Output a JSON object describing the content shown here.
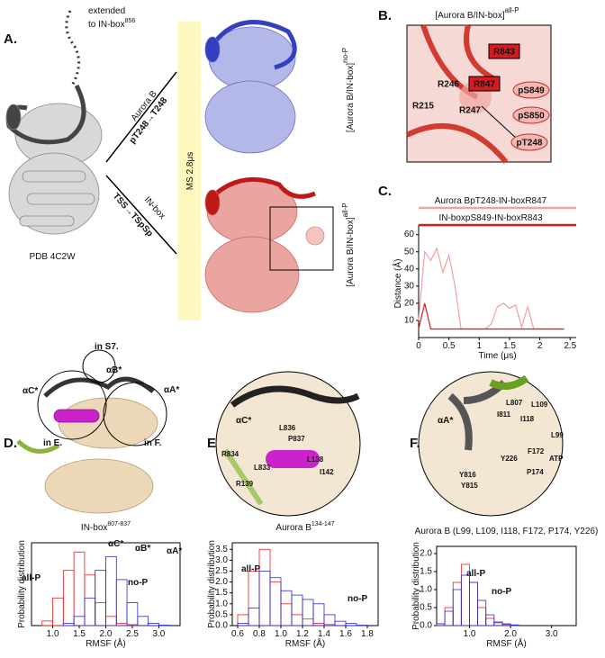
{
  "figure": {
    "panels": [
      "A.",
      "B.",
      "C.",
      "D.",
      "E.",
      "F."
    ],
    "a": {
      "extended": "extended",
      "to_inbox": "to IN-box",
      "to_inbox_sup": "856",
      "aurora_b": "Aurora B",
      "mut1": "pT248→T248",
      "inbox": "IN-box",
      "mut2": "TSS→TSpSp",
      "ms": "MS 2.8μs",
      "nop_main": "[Aurora B/IN-box]",
      "nop_sup": "no-P",
      "allp_main": "[Aurora B/IN-box]",
      "allp_sup": "all-P",
      "pdb": "PDB 4C2W"
    },
    "b": {
      "title": "[Aurora B/IN-box]",
      "title_sup": "all-P",
      "residues": [
        "R843",
        "pS849",
        "R246",
        "R847",
        "R215",
        "R247",
        "pS850",
        "pT248"
      ]
    },
    "d": {
      "labels": [
        "αC*",
        "αB*",
        "αA*",
        "in S7.",
        "in E.",
        "in F."
      ]
    },
    "e": {
      "labels": [
        "αC*",
        "L836",
        "P837",
        "R834",
        "L833",
        "L138",
        "I142",
        "R139"
      ]
    },
    "f": {
      "labels": [
        "αA*",
        "L807",
        "L109",
        "I118",
        "L99",
        "F172",
        "ATP",
        "I811",
        "Y226",
        "P174",
        "Y816",
        "Y815"
      ]
    }
  },
  "chart_data": [
    {
      "type": "line",
      "xlabel": "Time (μs)",
      "ylabel": "Distance (Å)",
      "x": [
        0,
        0.1,
        0.2,
        0.3,
        0.4,
        0.5,
        0.6,
        0.7,
        0.8,
        0.9,
        1.0,
        1.1,
        1.2,
        1.3,
        1.4,
        1.5,
        1.6,
        1.7,
        1.8,
        1.9,
        2.0,
        2.1,
        2.2,
        2.3,
        2.4
      ],
      "series": [
        {
          "name": "Aurora BpT248-IN-boxR847",
          "color": "#f4a0a0",
          "values": [
            10,
            50,
            45,
            52,
            38,
            48,
            30,
            5,
            5,
            5,
            5,
            5,
            8,
            18,
            20,
            17,
            19,
            6,
            18,
            5,
            5,
            5,
            5,
            5,
            5
          ]
        },
        {
          "name": "IN-boxpS849-IN-boxR843",
          "color": "#d71920",
          "values": [
            5,
            20,
            5,
            5,
            5,
            5,
            5,
            5,
            5,
            5,
            5,
            5,
            5,
            5,
            5,
            5,
            5,
            5,
            5,
            5,
            5,
            5,
            5,
            5,
            5
          ]
        }
      ],
      "xlim": [
        0,
        2.6
      ],
      "xticks": [
        0,
        0.5,
        1,
        1.5,
        2,
        2.5
      ],
      "ylim": [
        0,
        63
      ],
      "yticks": [
        10,
        20,
        30,
        40,
        50,
        60
      ]
    },
    {
      "type": "histogram",
      "title": "IN-box",
      "title_sup": "807-837",
      "xlabel": "RMSF (Å)",
      "ylabel": "Probability distribution",
      "annotations": [
        "αC*",
        "αB*",
        "αA*"
      ],
      "bins": [
        0.8,
        1.0,
        1.2,
        1.4,
        1.6,
        1.8,
        2.0,
        2.2,
        2.4,
        2.6,
        2.8,
        3.0,
        3.2
      ],
      "series": [
        {
          "name": "all-P",
          "color": "#e8201c",
          "values": [
            0.1,
            0.6,
            1.2,
            1.6,
            1.1,
            0.5,
            0.2,
            0.05,
            0.02,
            0,
            0,
            0
          ]
        },
        {
          "name": "no-P",
          "color": "#2a2ad0",
          "values": [
            0,
            0,
            0.05,
            0.2,
            0.6,
            1.2,
            1.5,
            1.0,
            0.5,
            0.2,
            0.05,
            0.01
          ]
        }
      ],
      "xlim": [
        0.6,
        3.4
      ],
      "xticks": [
        {
          "value": 1,
          "label": "1.0"
        },
        {
          "value": 1.5,
          "label": "1.5"
        },
        {
          "value": 2,
          "label": "2.0"
        },
        {
          "value": 2.5,
          "label": "2.5"
        },
        {
          "value": 3,
          "label": "3.0"
        }
      ],
      "ylim": [
        0,
        1.8
      ]
    },
    {
      "type": "histogram",
      "title": "Aurora B",
      "title_sup": "134-147",
      "xlabel": "RMSF (Å)",
      "ylabel": "Probability distribution",
      "bins": [
        0.6,
        0.7,
        0.8,
        0.9,
        1.0,
        1.1,
        1.2,
        1.3,
        1.4,
        1.5,
        1.6,
        1.7,
        1.8
      ],
      "series": [
        {
          "name": "all-P",
          "color": "#e8201c",
          "values": [
            0.5,
            2.5,
            3.5,
            2.0,
            1.0,
            0.5,
            0.3,
            0.1,
            0.05,
            0,
            0,
            0
          ]
        },
        {
          "name": "no-P",
          "color": "#2a2ad0",
          "values": [
            0.1,
            0.8,
            2.5,
            2.2,
            1.6,
            1.4,
            1.2,
            1.0,
            0.5,
            0.2,
            0.1,
            0.02
          ]
        }
      ],
      "xlim": [
        0.55,
        1.9
      ],
      "xticks": [
        {
          "value": 0.6,
          "label": "0.6"
        },
        {
          "value": 0.8,
          "label": "0.8"
        },
        {
          "value": 1,
          "label": "1.0"
        },
        {
          "value": 1.2,
          "label": "1.2"
        },
        {
          "value": 1.4,
          "label": "1.4"
        },
        {
          "value": 1.6,
          "label": "1.6"
        },
        {
          "value": 1.8,
          "label": "1.8"
        }
      ],
      "ylim": [
        0,
        3.8
      ],
      "yticks": [
        {
          "value": 0,
          "label": "0.0"
        },
        {
          "value": 0.5,
          "label": "0.5"
        },
        {
          "value": 1,
          "label": "1.0"
        },
        {
          "value": 1.5,
          "label": "1.5"
        },
        {
          "value": 2,
          "label": "2.0"
        },
        {
          "value": 2.5,
          "label": "2.5"
        },
        {
          "value": 3,
          "label": "3.0"
        },
        {
          "value": 3.5,
          "label": "3.5"
        }
      ]
    },
    {
      "type": "histogram",
      "title": "Aurora B (L99, L109, I118, F172, P174, Y226)",
      "xlabel": "RMSF (Å)",
      "ylabel": "Probability distribution",
      "bins": [
        0.2,
        0.4,
        0.6,
        0.8,
        1.0,
        1.2,
        1.4,
        1.6,
        1.8,
        2.0,
        2.2,
        2.4,
        2.6,
        2.8,
        3.0,
        3.2,
        3.4
      ],
      "series": [
        {
          "name": "all-P",
          "color": "#e8201c",
          "values": [
            0.05,
            0.5,
            1.2,
            1.7,
            1.2,
            0.5,
            0.2,
            0.08,
            0.03,
            0.01,
            0,
            0,
            0,
            0,
            0,
            0
          ]
        },
        {
          "name": "no-P",
          "color": "#2a2ad0",
          "values": [
            0.05,
            0.4,
            1.0,
            1.4,
            1.2,
            0.7,
            0.3,
            0.1,
            0.05,
            0.02,
            0,
            0,
            0,
            0,
            0,
            0
          ]
        }
      ],
      "xlim": [
        0.2,
        3.6
      ],
      "xticks": [
        {
          "value": 1,
          "label": "1.0"
        },
        {
          "value": 2,
          "label": "2.0"
        },
        {
          "value": 3,
          "label": "3.0"
        }
      ],
      "ylim": [
        0,
        2.2
      ],
      "yticks": [
        {
          "value": 0,
          "label": "0.0"
        },
        {
          "value": 0.5,
          "label": "0.5"
        },
        {
          "value": 1,
          "label": "1.0"
        },
        {
          "value": 1.5,
          "label": "1.5"
        },
        {
          "value": 2,
          "label": "2.0"
        }
      ]
    }
  ]
}
